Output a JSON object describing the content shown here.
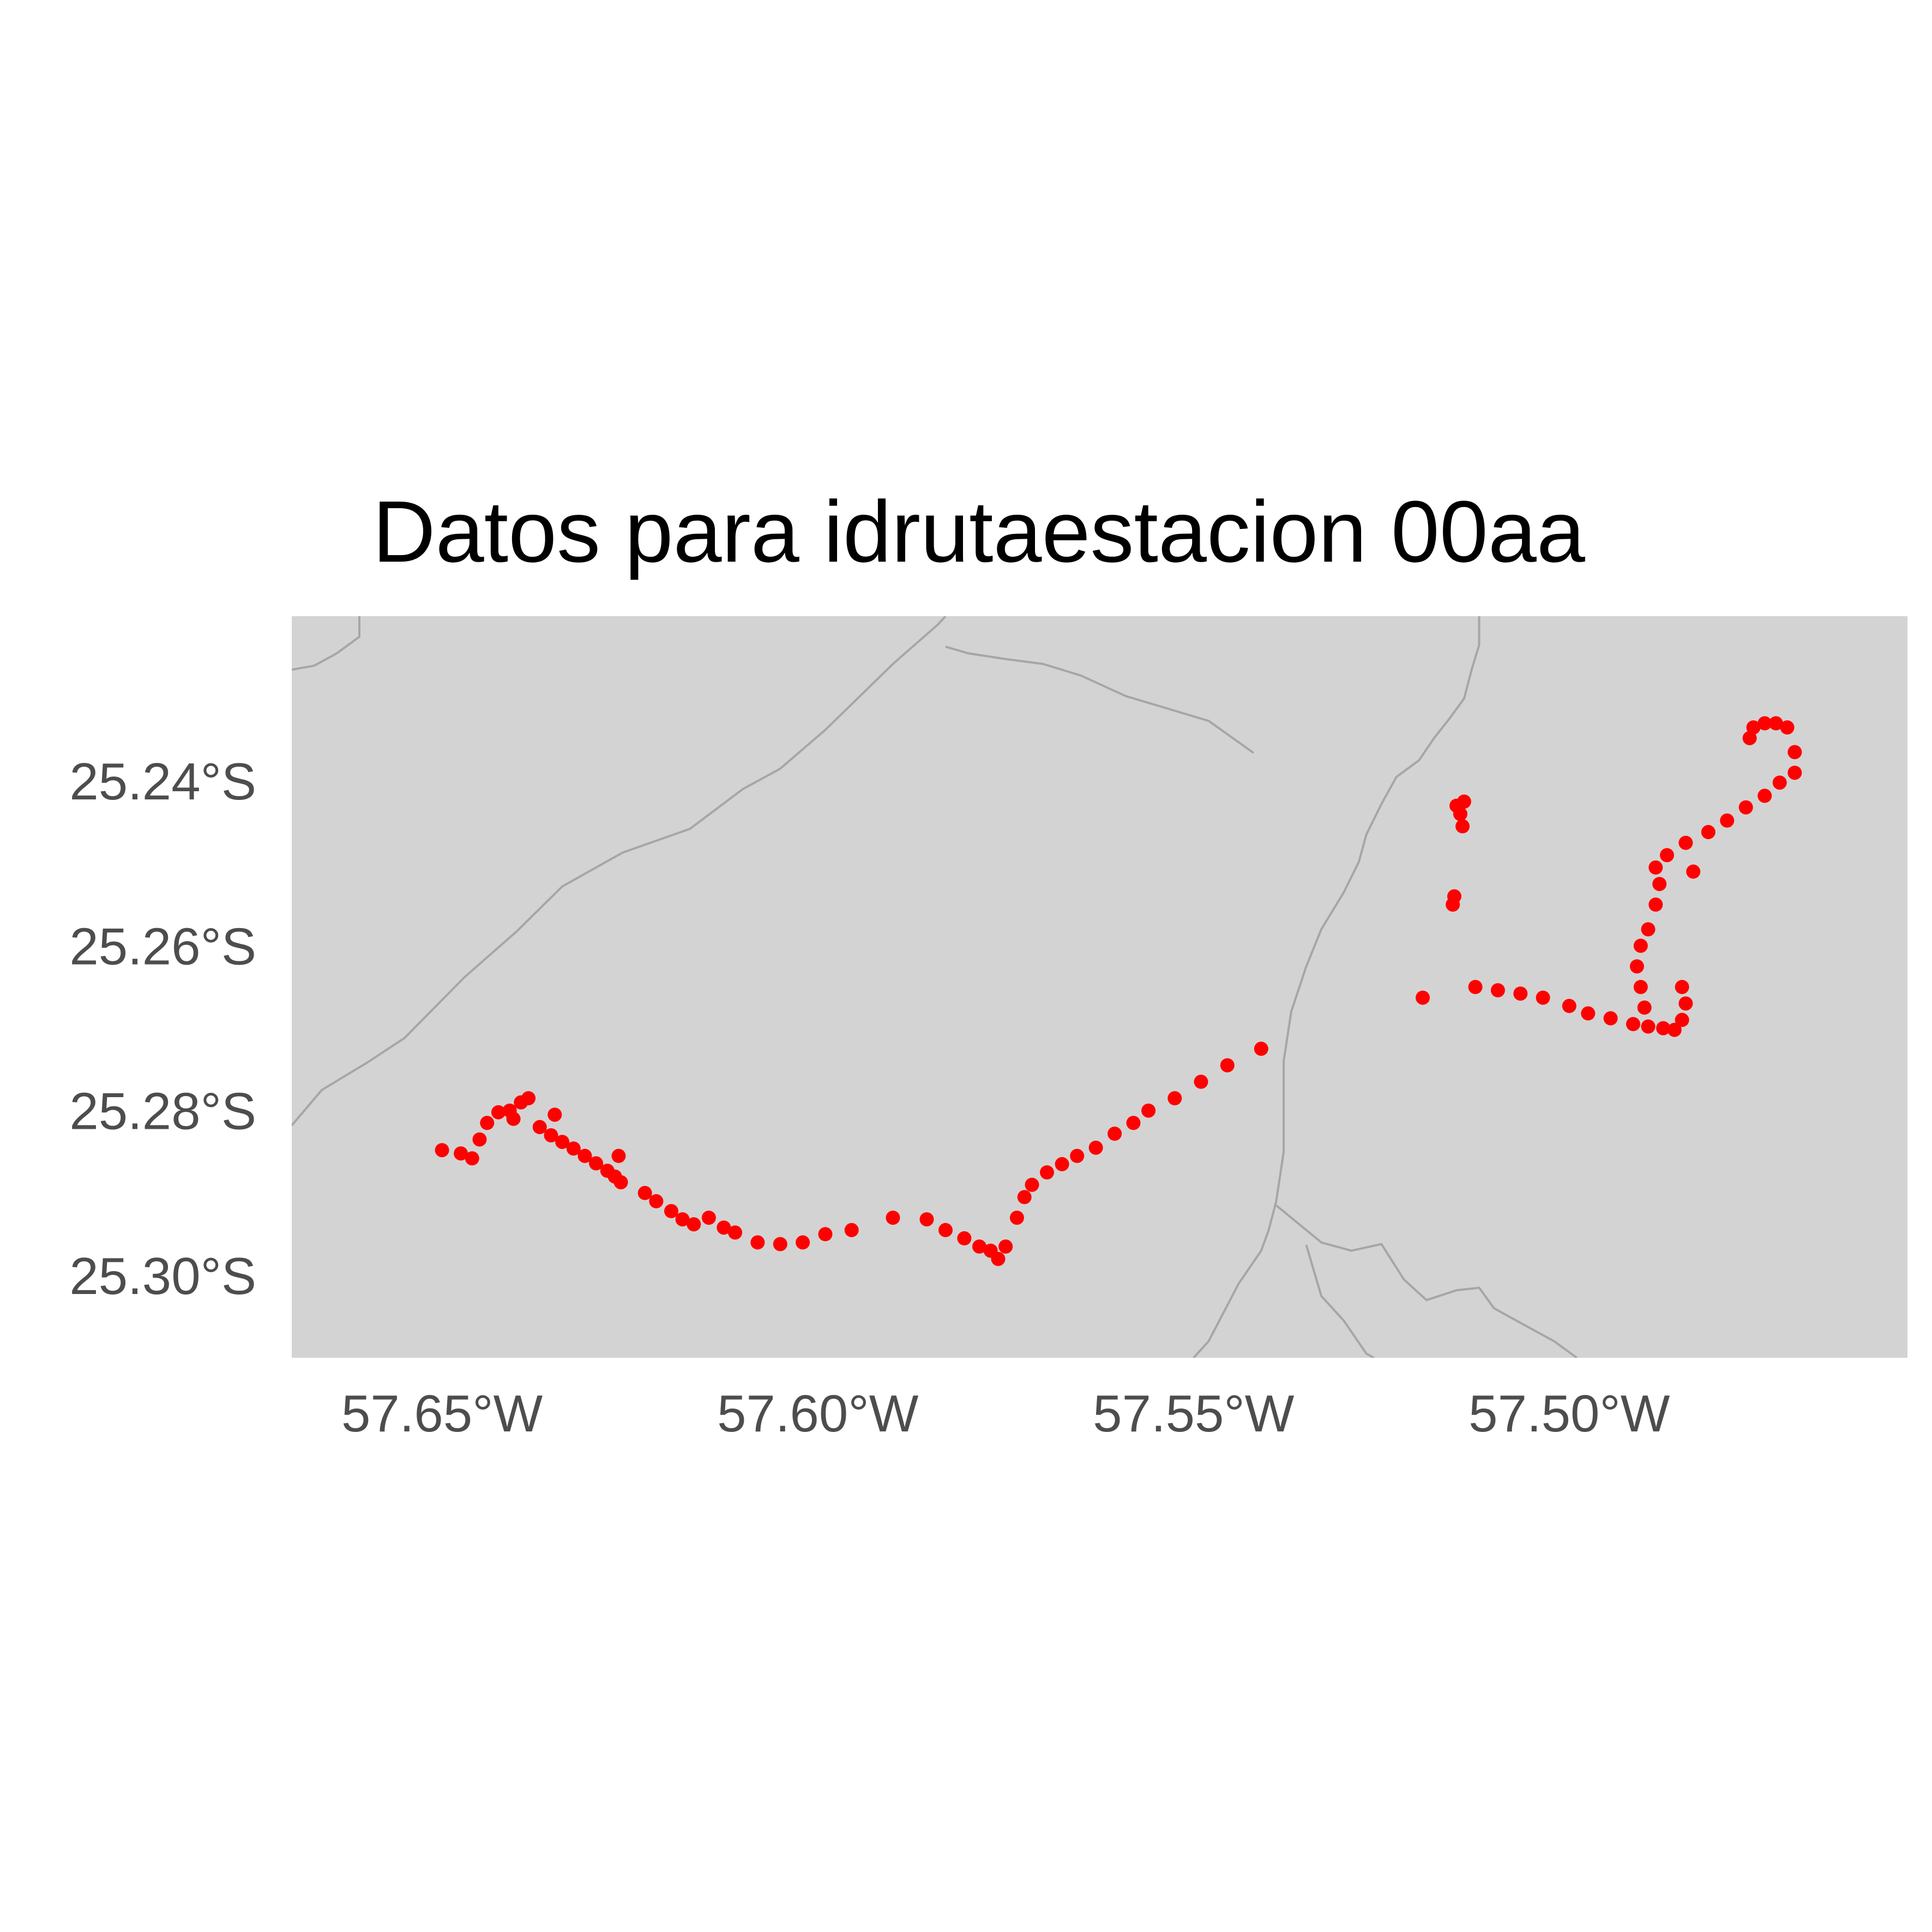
{
  "chart_data": {
    "type": "scatter",
    "title": "Datos para idrutaestacion 00aa",
    "xlabel": "",
    "ylabel": "",
    "xlim": [
      -57.67,
      -57.455
    ],
    "ylim": [
      -25.31,
      -25.22
    ],
    "grid": false,
    "x_ticks": [
      {
        "value": -57.65,
        "label": "57.65°W"
      },
      {
        "value": -57.6,
        "label": "57.60°W"
      },
      {
        "value": -57.55,
        "label": "57.55°W"
      },
      {
        "value": -57.5,
        "label": "57.50°W"
      }
    ],
    "y_ticks": [
      {
        "value": -25.24,
        "label": "25.24°S"
      },
      {
        "value": -25.26,
        "label": "25.26°S"
      },
      {
        "value": -25.28,
        "label": "25.28°S"
      },
      {
        "value": -25.3,
        "label": "25.30°S"
      }
    ],
    "colors": {
      "points": "#ff0000",
      "land": "#d3d3d3",
      "boundaries": "#a6a6a6",
      "title": "#000000",
      "ticks": "#4d4d4d"
    },
    "boundaries": [
      [
        [
          -57.67,
          -25.2818
        ],
        [
          -57.666,
          -25.2775
        ],
        [
          -57.66,
          -25.2742
        ],
        [
          -57.655,
          -25.2712
        ],
        [
          -57.647,
          -25.2638
        ],
        [
          -57.64,
          -25.2582
        ],
        [
          -57.634,
          -25.2528
        ],
        [
          -57.626,
          -25.2487
        ],
        [
          -57.617,
          -25.2458
        ],
        [
          -57.61,
          -25.241
        ],
        [
          -57.605,
          -25.2385
        ],
        [
          -57.599,
          -25.2338
        ],
        [
          -57.59,
          -25.2258
        ],
        [
          -57.584,
          -25.221
        ],
        [
          -57.583,
          -25.22
        ]
      ],
      [
        [
          -57.583,
          -25.2237
        ],
        [
          -57.58,
          -25.2245
        ],
        [
          -57.575,
          -25.2252
        ],
        [
          -57.57,
          -25.2258
        ],
        [
          -57.565,
          -25.2272
        ],
        [
          -57.559,
          -25.2297
        ],
        [
          -57.548,
          -25.2327
        ],
        [
          -57.542,
          -25.2366
        ]
      ],
      [
        [
          -57.512,
          -25.22
        ],
        [
          -57.512,
          -25.2235
        ],
        [
          -57.513,
          -25.2265
        ],
        [
          -57.514,
          -25.23
        ],
        [
          -57.516,
          -25.2325
        ],
        [
          -57.518,
          -25.2348
        ],
        [
          -57.52,
          -25.2375
        ],
        [
          -57.523,
          -25.2395
        ],
        [
          -57.525,
          -25.2428
        ],
        [
          -57.527,
          -25.2465
        ],
        [
          -57.528,
          -25.2498
        ],
        [
          -57.53,
          -25.2535
        ],
        [
          -57.533,
          -25.258
        ],
        [
          -57.535,
          -25.2625
        ],
        [
          -57.537,
          -25.268
        ],
        [
          -57.538,
          -25.274
        ],
        [
          -57.538,
          -25.28
        ],
        [
          -57.538,
          -25.285
        ],
        [
          -57.539,
          -25.291
        ],
        [
          -57.54,
          -25.2945
        ],
        [
          -57.541,
          -25.297
        ],
        [
          -57.544,
          -25.301
        ],
        [
          -57.548,
          -25.308
        ],
        [
          -57.55,
          -25.31
        ]
      ],
      [
        [
          -57.539,
          -25.2915
        ],
        [
          -57.533,
          -25.296
        ],
        [
          -57.529,
          -25.297
        ],
        [
          -57.525,
          -25.2962
        ],
        [
          -57.522,
          -25.3005
        ],
        [
          -57.519,
          -25.303
        ],
        [
          -57.515,
          -25.3018
        ],
        [
          -57.512,
          -25.3015
        ],
        [
          -57.51,
          -25.304
        ],
        [
          -57.506,
          -25.306
        ],
        [
          -57.502,
          -25.308
        ],
        [
          -57.499,
          -25.31
        ]
      ],
      [
        [
          -57.535,
          -25.2963
        ],
        [
          -57.533,
          -25.3025
        ],
        [
          -57.53,
          -25.3055
        ],
        [
          -57.527,
          -25.3095
        ],
        [
          -57.526,
          -25.31
        ]
      ],
      [
        [
          -57.661,
          -25.22
        ],
        [
          -57.661,
          -25.2225
        ],
        [
          -57.664,
          -25.2245
        ],
        [
          -57.667,
          -25.226
        ],
        [
          -57.67,
          -25.2265
        ]
      ]
    ],
    "points": [
      [
        -57.65,
        -25.2848
      ],
      [
        -57.6475,
        -25.2852
      ],
      [
        -57.646,
        -25.2858
      ],
      [
        -57.645,
        -25.2835
      ],
      [
        -57.644,
        -25.2815
      ],
      [
        -57.6425,
        -25.2802
      ],
      [
        -57.641,
        -25.28
      ],
      [
        -57.6395,
        -25.279
      ],
      [
        -57.6385,
        -25.2785
      ],
      [
        -57.6405,
        -25.281
      ],
      [
        -57.637,
        -25.282
      ],
      [
        -57.6355,
        -25.283
      ],
      [
        -57.634,
        -25.2838
      ],
      [
        -57.6325,
        -25.2846
      ],
      [
        -57.631,
        -25.2855
      ],
      [
        -57.6295,
        -25.2864
      ],
      [
        -57.628,
        -25.2873
      ],
      [
        -57.627,
        -25.288
      ],
      [
        -57.6262,
        -25.2887
      ],
      [
        -57.6265,
        -25.2855
      ],
      [
        -57.635,
        -25.2805
      ],
      [
        -57.623,
        -25.29
      ],
      [
        -57.6215,
        -25.291
      ],
      [
        -57.6195,
        -25.2922
      ],
      [
        -57.618,
        -25.2932
      ],
      [
        -57.6165,
        -25.2938
      ],
      [
        -57.6145,
        -25.293
      ],
      [
        -57.6125,
        -25.2942
      ],
      [
        -57.611,
        -25.2948
      ],
      [
        -57.608,
        -25.296
      ],
      [
        -57.605,
        -25.2962
      ],
      [
        -57.602,
        -25.296
      ],
      [
        -57.599,
        -25.295
      ],
      [
        -57.5955,
        -25.2945
      ],
      [
        -57.59,
        -25.293
      ],
      [
        -57.5855,
        -25.2932
      ],
      [
        -57.583,
        -25.2945
      ],
      [
        -57.5805,
        -25.2955
      ],
      [
        -57.5785,
        -25.2965
      ],
      [
        -57.577,
        -25.297
      ],
      [
        -57.576,
        -25.298
      ],
      [
        -57.575,
        -25.2965
      ],
      [
        -57.5735,
        -25.293
      ],
      [
        -57.5725,
        -25.2905
      ],
      [
        -57.5715,
        -25.289
      ],
      [
        -57.5695,
        -25.2875
      ],
      [
        -57.5675,
        -25.2865
      ],
      [
        -57.5655,
        -25.2855
      ],
      [
        -57.563,
        -25.2845
      ],
      [
        -57.5605,
        -25.2828
      ],
      [
        -57.558,
        -25.2815
      ],
      [
        -57.556,
        -25.28
      ],
      [
        -57.5525,
        -25.2785
      ],
      [
        -57.549,
        -25.2765
      ],
      [
        -57.5455,
        -25.2745
      ],
      [
        -57.541,
        -25.2725
      ],
      [
        -57.5195,
        -25.2663
      ],
      [
        -57.5125,
        -25.265
      ],
      [
        -57.5095,
        -25.2654
      ],
      [
        -57.5065,
        -25.2658
      ],
      [
        -57.5035,
        -25.2663
      ],
      [
        -57.5,
        -25.2673
      ],
      [
        -57.4975,
        -25.2682
      ],
      [
        -57.4945,
        -25.2688
      ],
      [
        -57.4915,
        -25.2695
      ],
      [
        -57.4895,
        -25.2698
      ],
      [
        -57.4875,
        -25.27
      ],
      [
        -57.486,
        -25.2702
      ],
      [
        -57.485,
        -25.269
      ],
      [
        -57.4845,
        -25.267
      ],
      [
        -57.485,
        -25.265
      ],
      [
        -57.49,
        -25.2675
      ],
      [
        -57.4905,
        -25.265
      ],
      [
        -57.491,
        -25.2625
      ],
      [
        -57.4905,
        -25.26
      ],
      [
        -57.4895,
        -25.258
      ],
      [
        -57.4885,
        -25.255
      ],
      [
        -57.488,
        -25.2525
      ],
      [
        -57.4885,
        -25.2505
      ],
      [
        -57.487,
        -25.249
      ],
      [
        -57.4845,
        -25.2475
      ],
      [
        -57.4815,
        -25.2462
      ],
      [
        -57.479,
        -25.2448
      ],
      [
        -57.4765,
        -25.2432
      ],
      [
        -57.474,
        -25.2418
      ],
      [
        -57.472,
        -25.2402
      ],
      [
        -57.47,
        -25.239
      ],
      [
        -57.47,
        -25.2365
      ],
      [
        -57.471,
        -25.2335
      ],
      [
        -57.4725,
        -25.233
      ],
      [
        -57.474,
        -25.233
      ],
      [
        -57.4755,
        -25.2335
      ],
      [
        -57.476,
        -25.2348
      ],
      [
        -57.4835,
        -25.251
      ],
      [
        -57.514,
        -25.2425
      ],
      [
        -57.5142,
        -25.2455
      ],
      [
        -57.5145,
        -25.244
      ],
      [
        -57.5155,
        -25.255
      ],
      [
        -57.5153,
        -25.254
      ],
      [
        -57.515,
        -25.243
      ]
    ]
  }
}
